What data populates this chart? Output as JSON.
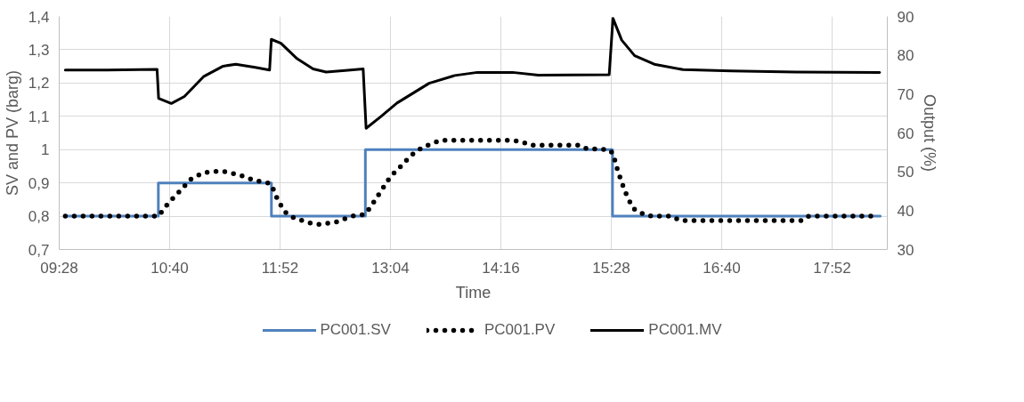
{
  "chart_data": {
    "type": "line",
    "xlabel": "Time",
    "ylabel": "SV and PV (barg)",
    "y2label": "Output (%)",
    "xlim": [
      9.466667,
      18.466667
    ],
    "xticks": [
      {
        "value": 9.466667,
        "label": "09:28"
      },
      {
        "value": 10.666667,
        "label": "10:40"
      },
      {
        "value": 11.866667,
        "label": "11:52"
      },
      {
        "value": 13.066667,
        "label": "13:04"
      },
      {
        "value": 14.266667,
        "label": "14:16"
      },
      {
        "value": 15.466667,
        "label": "15:28"
      },
      {
        "value": 16.666667,
        "label": "16:40"
      },
      {
        "value": 17.866667,
        "label": "17:52"
      }
    ],
    "ylim": [
      0.7,
      1.4
    ],
    "yticks": [
      {
        "value": 0.7,
        "label": "0,7"
      },
      {
        "value": 0.8,
        "label": "0,8"
      },
      {
        "value": 0.9,
        "label": "0,9"
      },
      1,
      {
        "value": 1.1,
        "label": "1,1"
      },
      {
        "value": 1.2,
        "label": "1,2"
      },
      {
        "value": 1.3,
        "label": "1,3"
      },
      {
        "value": 1.4,
        "label": "1,4"
      }
    ],
    "y2lim": [
      30,
      90
    ],
    "y2ticks": [
      30,
      40,
      50,
      60,
      70,
      80,
      90
    ],
    "grid": true,
    "legend": "bottom",
    "series": [
      {
        "name": "PC001.SV",
        "color": "#4f81bd",
        "line_style": "solid",
        "x": [
          9.533,
          10.544,
          10.544,
          11.773,
          11.773,
          12.794,
          12.794,
          15.48,
          15.48,
          18.39
        ],
        "values": [
          0.8,
          0.8,
          0.9,
          0.9,
          0.8,
          0.8,
          1.0,
          1.0,
          0.8,
          0.8
        ]
      },
      {
        "name": "PC001.PV",
        "color": "#000000",
        "line_style": "dotted",
        "x": [
          9.533,
          10.544,
          10.652,
          10.757,
          10.897,
          11.035,
          11.233,
          11.422,
          11.597,
          11.752,
          11.79,
          11.838,
          11.914,
          12.017,
          12.187,
          12.297,
          12.471,
          12.647,
          12.783,
          12.84,
          12.925,
          13.067,
          13.17,
          13.293,
          13.416,
          13.61,
          14.162,
          14.389,
          14.499,
          14.586,
          15.126,
          15.198,
          15.444,
          15.485,
          15.513,
          15.542,
          15.576,
          15.608,
          15.653,
          15.702,
          15.775,
          15.844,
          15.933,
          16.126,
          16.213,
          17.543,
          17.611,
          18.291
        ],
        "values": [
          0.8,
          0.8,
          0.839,
          0.869,
          0.911,
          0.931,
          0.936,
          0.924,
          0.907,
          0.899,
          0.883,
          0.851,
          0.814,
          0.795,
          0.78,
          0.775,
          0.782,
          0.8,
          0.805,
          0.823,
          0.859,
          0.919,
          0.947,
          0.983,
          1.007,
          1.028,
          1.028,
          1.028,
          1.023,
          1.013,
          1.013,
          1.003,
          1.0,
          0.988,
          0.961,
          0.931,
          0.906,
          0.879,
          0.852,
          0.824,
          0.812,
          0.802,
          0.8,
          0.8,
          0.787,
          0.787,
          0.8,
          0.8
        ]
      },
      {
        "name": "PC001.MV",
        "color": "#000000",
        "line_style": "solid",
        "axis": "y2",
        "x": [
          9.533,
          9.986,
          10.53,
          10.547,
          10.685,
          10.827,
          11.035,
          11.248,
          11.385,
          11.597,
          11.753,
          11.772,
          11.876,
          12.053,
          12.226,
          12.368,
          12.575,
          12.77,
          12.802,
          12.962,
          13.137,
          13.487,
          13.766,
          14.011,
          14.393,
          14.673,
          15.444,
          15.485,
          15.58,
          15.721,
          15.933,
          16.247,
          16.77,
          17.469,
          18.383
        ],
        "values": [
          76.2,
          76.2,
          76.4,
          68.9,
          67.6,
          69.4,
          74.5,
          77.2,
          77.7,
          76.9,
          76.2,
          84.1,
          83.1,
          79.1,
          76.5,
          75.7,
          76.1,
          76.5,
          61.2,
          64.2,
          67.7,
          72.8,
          74.8,
          75.6,
          75.6,
          74.9,
          75.0,
          89.5,
          83.9,
          79.9,
          77.7,
          76.3,
          76.0,
          75.7,
          75.6
        ]
      }
    ]
  }
}
